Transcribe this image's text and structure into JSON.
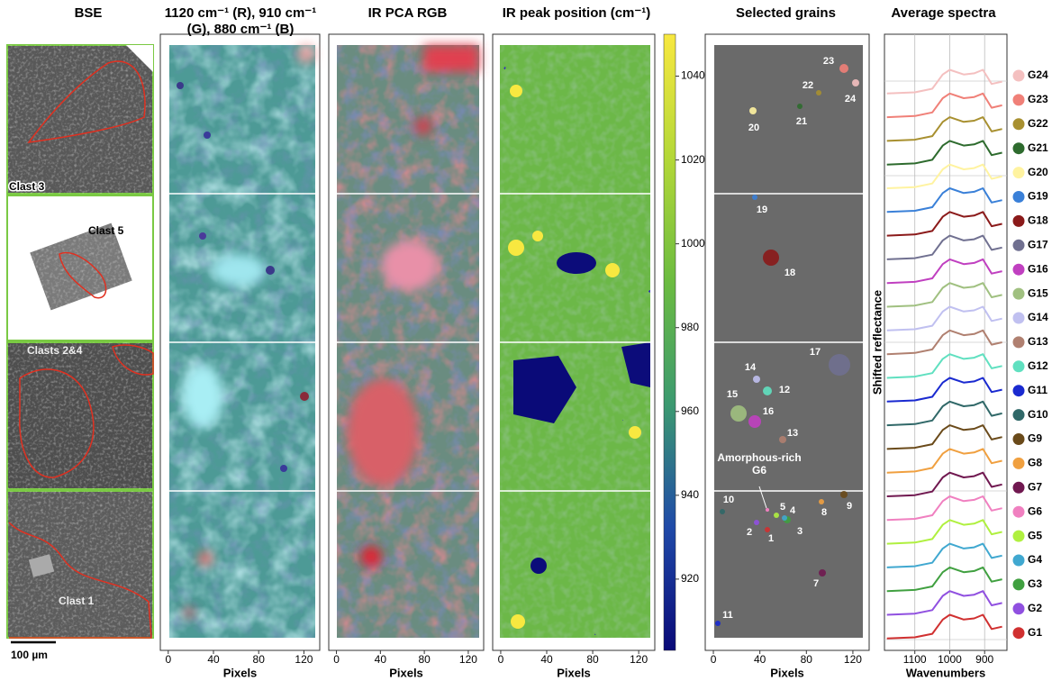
{
  "chart_data": [
    {
      "type": "image",
      "title": "BSE",
      "panels": [
        "Clast 3",
        "Clast 5",
        "Clasts 2&4",
        "Clast 1"
      ],
      "scale_bar": "100 µm"
    },
    {
      "type": "image",
      "title": "1120 cm⁻¹ (R), 910 cm⁻¹ (G), 880 cm⁻¹ (B)",
      "xlabel": "Pixels",
      "xlim": [
        -7,
        134
      ],
      "xticks": [
        0,
        40,
        80,
        120
      ]
    },
    {
      "type": "image",
      "title": "IR PCA RGB",
      "xlabel": "Pixels",
      "xlim": [
        -7,
        134
      ],
      "xticks": [
        0,
        40,
        80,
        120
      ]
    },
    {
      "type": "heatmap",
      "title": "IR peak position (cm⁻¹)",
      "xlabel": "Pixels",
      "xlim": [
        -7,
        134
      ],
      "xticks": [
        0,
        40,
        80,
        120
      ],
      "clim": [
        903,
        1050
      ],
      "cticks": [
        920,
        940,
        960,
        980,
        1000,
        1020,
        1040
      ],
      "colors": [
        "#0a0a78",
        "#1f4aa8",
        "#3c9a70",
        "#6cbc40",
        "#b4d838",
        "#f8e840"
      ]
    },
    {
      "type": "image",
      "title": "Selected grains",
      "xlabel": "Pixels",
      "xlim": [
        -7,
        134
      ],
      "xticks": [
        0,
        40,
        80,
        120
      ],
      "grains": [
        {
          "label": "1",
          "color": "#d03030"
        },
        {
          "label": "2",
          "color": "#9050e0"
        },
        {
          "label": "3",
          "color": "#40a040"
        },
        {
          "label": "4",
          "color": "#40a8d0"
        },
        {
          "label": "5",
          "color": "#b0f040"
        },
        {
          "label": "7",
          "color": "#701850"
        },
        {
          "label": "8",
          "color": "#f0a040"
        },
        {
          "label": "9",
          "color": "#6a4a1a"
        },
        {
          "label": "10",
          "color": "#306868"
        },
        {
          "label": "11",
          "color": "#1a2ad0"
        },
        {
          "label": "12",
          "color": "#60e0c0"
        },
        {
          "label": "13",
          "color": "#b08070"
        },
        {
          "label": "14",
          "color": "#c0c0f0"
        },
        {
          "label": "15",
          "color": "#a0c080"
        },
        {
          "label": "16",
          "color": "#c040c0"
        },
        {
          "label": "17",
          "color": "#707090"
        },
        {
          "label": "18",
          "color": "#8b1a1a"
        },
        {
          "label": "19",
          "color": "#3a80d8"
        },
        {
          "label": "20",
          "color": "#fff3a0"
        },
        {
          "label": "21",
          "color": "#2e6b2e"
        },
        {
          "label": "22",
          "color": "#a89030"
        },
        {
          "label": "23",
          "color": "#f08078"
        },
        {
          "label": "24",
          "color": "#f4c0c0"
        }
      ],
      "annotation": {
        "text": "Amorphous-rich G6",
        "color": "#f080c0"
      }
    },
    {
      "type": "line",
      "title": "Average spectra",
      "xlabel": "Wavenumbers",
      "ylabel": "Shifted reflectance",
      "x": [
        1180,
        1100,
        1050,
        1020,
        1000,
        960,
        930,
        905,
        880,
        850
      ],
      "xlim": [
        1187,
        836
      ],
      "xticks": [
        1100,
        1000,
        900
      ],
      "ylim": [
        -0.5,
        25.5
      ],
      "grid": true,
      "series": [
        {
          "name": "G24",
          "color": "#f4c0c0",
          "values": [
            23,
            23.05,
            23.2,
            23.8,
            24,
            23.8,
            23.85,
            24,
            23.4,
            23.5
          ]
        },
        {
          "name": "G23",
          "color": "#f08078",
          "values": [
            22,
            22.05,
            22.2,
            22.8,
            23,
            22.8,
            22.85,
            23,
            22.4,
            22.5
          ]
        },
        {
          "name": "G22",
          "color": "#a89030",
          "values": [
            21,
            21.05,
            21.2,
            21.8,
            22,
            21.8,
            21.85,
            22,
            21.4,
            21.5
          ]
        },
        {
          "name": "G21",
          "color": "#2e6b2e",
          "values": [
            20,
            20.05,
            20.2,
            20.8,
            21,
            20.8,
            20.85,
            21,
            20.4,
            20.5
          ]
        },
        {
          "name": "G20",
          "color": "#fff3a0",
          "values": [
            19,
            19.05,
            19.2,
            19.8,
            20,
            19.8,
            19.85,
            20,
            19.4,
            19.5
          ]
        },
        {
          "name": "G19",
          "color": "#3a80d8",
          "values": [
            18,
            18.05,
            18.2,
            18.8,
            19,
            18.8,
            18.85,
            19,
            18.4,
            18.5
          ]
        },
        {
          "name": "G18",
          "color": "#8b1a1a",
          "values": [
            17,
            17.05,
            17.2,
            17.8,
            18,
            17.8,
            17.85,
            18,
            17.4,
            17.5
          ]
        },
        {
          "name": "G17",
          "color": "#707090",
          "values": [
            16,
            16.05,
            16.2,
            16.8,
            17,
            16.8,
            16.85,
            17,
            16.4,
            16.5
          ]
        },
        {
          "name": "G16",
          "color": "#c040c0",
          "values": [
            15,
            15.05,
            15.2,
            15.8,
            16,
            15.8,
            15.85,
            16,
            15.4,
            15.5
          ]
        },
        {
          "name": "G15",
          "color": "#a0c080",
          "values": [
            14,
            14.05,
            14.2,
            14.8,
            15,
            14.8,
            14.85,
            15,
            14.4,
            14.5
          ]
        },
        {
          "name": "G14",
          "color": "#c0c0f0",
          "values": [
            13,
            13.05,
            13.2,
            13.8,
            14,
            13.8,
            13.85,
            14,
            13.4,
            13.5
          ]
        },
        {
          "name": "G13",
          "color": "#b08070",
          "values": [
            12,
            12.05,
            12.2,
            12.8,
            13,
            12.8,
            12.85,
            13,
            12.4,
            12.5
          ]
        },
        {
          "name": "G12",
          "color": "#60e0c0",
          "values": [
            11,
            11.05,
            11.2,
            11.8,
            12,
            11.8,
            11.85,
            12,
            11.4,
            11.5
          ]
        },
        {
          "name": "G11",
          "color": "#1a2ad0",
          "values": [
            10,
            10.05,
            10.2,
            10.8,
            11,
            10.8,
            10.85,
            11,
            10.4,
            10.5
          ]
        },
        {
          "name": "G10",
          "color": "#306868",
          "values": [
            9,
            9.05,
            9.2,
            9.8,
            10,
            9.8,
            9.85,
            10,
            9.4,
            9.5
          ]
        },
        {
          "name": "G9",
          "color": "#6a4a1a",
          "values": [
            8,
            8.05,
            8.2,
            8.8,
            9,
            8.8,
            8.85,
            9,
            8.4,
            8.5
          ]
        },
        {
          "name": "G8",
          "color": "#f0a040",
          "values": [
            7,
            7.05,
            7.2,
            7.8,
            8,
            7.8,
            7.85,
            8,
            7.4,
            7.5
          ]
        },
        {
          "name": "G7",
          "color": "#701850",
          "values": [
            6,
            6.05,
            6.2,
            6.8,
            7,
            6.8,
            6.85,
            7,
            6.4,
            6.5
          ]
        },
        {
          "name": "G6",
          "color": "#f080c0",
          "values": [
            5,
            5.05,
            5.2,
            5.8,
            6,
            5.8,
            5.85,
            6,
            5.4,
            5.5
          ]
        },
        {
          "name": "G5",
          "color": "#b0f040",
          "values": [
            4,
            4.05,
            4.2,
            4.8,
            5,
            4.8,
            4.85,
            5,
            4.4,
            4.5
          ]
        },
        {
          "name": "G4",
          "color": "#40a8d0",
          "values": [
            3,
            3.05,
            3.2,
            3.8,
            4,
            3.8,
            3.85,
            4,
            3.4,
            3.5
          ]
        },
        {
          "name": "G3",
          "color": "#40a040",
          "values": [
            2,
            2.05,
            2.2,
            2.8,
            3,
            2.8,
            2.85,
            3,
            2.4,
            2.5
          ]
        },
        {
          "name": "G2",
          "color": "#9050e0",
          "values": [
            1,
            1.05,
            1.2,
            1.8,
            2,
            1.8,
            1.85,
            2,
            1.4,
            1.5
          ]
        },
        {
          "name": "G1",
          "color": "#d03030",
          "values": [
            0,
            0.05,
            0.2,
            0.8,
            1,
            0.8,
            0.85,
            1,
            0.4,
            0.5
          ]
        }
      ]
    }
  ]
}
